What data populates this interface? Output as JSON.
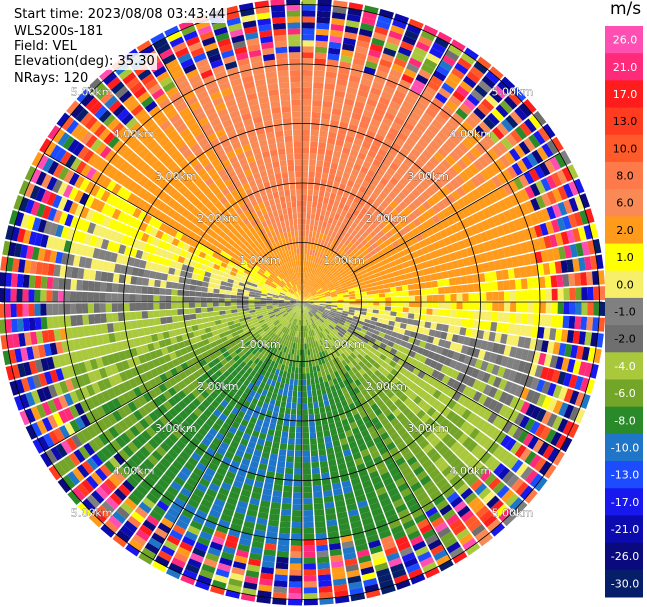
{
  "header": {
    "start_time": "Start time: 2023/08/08 03:43:44",
    "instrument": "WLS200s-181",
    "field": "Field: VEL",
    "elevation": "Elevation(deg): 35.30",
    "nrays": "NRays: 120"
  },
  "chart_data": {
    "type": "heatmap",
    "projection": "polar PPI",
    "field": "VEL",
    "nrays": 120,
    "unit": "m/s",
    "range_rings_km": [
      1.0,
      2.0,
      3.0,
      4.0,
      5.0
    ],
    "range_ring_labels": [
      "1.00km",
      "2.00km",
      "3.00km",
      "4.00km",
      "5.00km"
    ],
    "colorbar": {
      "tick_labels": [
        "26.0",
        "21.0",
        "17.0",
        "13.0",
        "10.0",
        "8.0",
        "6.0",
        "2.0",
        "1.0",
        "0.0",
        "-1.0",
        "-2.0",
        "-4.0",
        "-6.0",
        "-8.0",
        "-10.0",
        "-13.0",
        "-17.0",
        "-21.0",
        "-26.0",
        "-30.0"
      ],
      "bin_edges": [
        30,
        26,
        21,
        17,
        13,
        10,
        8,
        6,
        2,
        1,
        0,
        -1,
        -2,
        -4,
        -6,
        -8,
        -10,
        -13,
        -17,
        -21,
        -26,
        -30
      ],
      "colors": [
        "#ff4fb2",
        "#ff2a7a",
        "#ff1c1c",
        "#ff3b20",
        "#ff5a2a",
        "#ff7a4a",
        "#fa8a55",
        "#ff9a1a",
        "#ffff00",
        "#f7ef6a",
        "#808080",
        "#6f6f6f",
        "#a9c83b",
        "#73a528",
        "#2a8a2a",
        "#1f76c8",
        "#1d4cff",
        "#1818ee",
        "#0b0bb0",
        "#0a0a7e",
        "#061e6a"
      ]
    },
    "wind_pattern": {
      "positive_sector_from_north_deg": 12,
      "negative_sector_from_north_deg": 192,
      "max_abs_inner_ms": 8,
      "noisy_beyond_km": 4.2
    }
  }
}
